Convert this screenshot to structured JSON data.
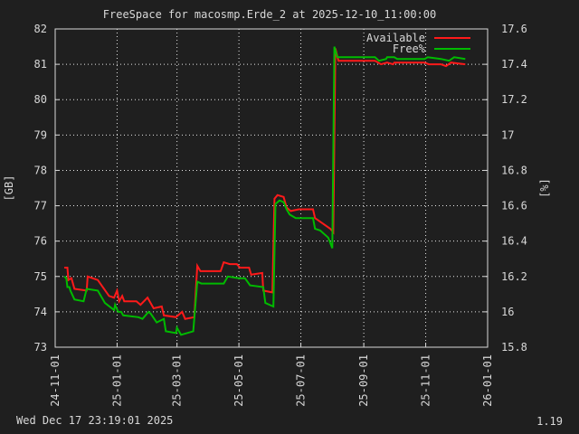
{
  "chart_data": {
    "type": "line",
    "title": "FreeSpace for macosmp.Erde_2  at 2025-12-10_11:00:00",
    "ylabel": "[GB]",
    "y2label": "[%]",
    "ylim": [
      73,
      82
    ],
    "y2lim": [
      15.8,
      17.6
    ],
    "yticks": [
      "73",
      "74",
      "75",
      "76",
      "77",
      "78",
      "79",
      "80",
      "81",
      "82"
    ],
    "y2ticks": [
      "15.8",
      "16",
      "16.2",
      "16.4",
      "16.6",
      "16.8",
      "17",
      "17.2",
      "17.4",
      "17.6"
    ],
    "xlim": [
      "2024-11-01",
      "2026-01-01"
    ],
    "xticks": [
      {
        "label": "24-11-01",
        "date": "2024-11-01"
      },
      {
        "label": "25-01-01",
        "date": "2025-01-01"
      },
      {
        "label": "25-03-01",
        "date": "2025-03-01"
      },
      {
        "label": "25-05-01",
        "date": "2025-05-01"
      },
      {
        "label": "25-07-01",
        "date": "2025-07-01"
      },
      {
        "label": "25-09-01",
        "date": "2025-09-01"
      },
      {
        "label": "25-11-01",
        "date": "2025-11-01"
      },
      {
        "label": "26-01-01",
        "date": "2026-01-01"
      }
    ],
    "grid": true,
    "legend": "top-right",
    "series": [
      {
        "name": "Available",
        "axis": "left",
        "color": "#ff1a1a",
        "points": [
          [
            "2024-11-10",
            75.25
          ],
          [
            "2024-11-13",
            75.25
          ],
          [
            "2024-11-14",
            74.9
          ],
          [
            "2024-11-17",
            74.95
          ],
          [
            "2024-11-20",
            74.65
          ],
          [
            "2024-12-02",
            74.6
          ],
          [
            "2024-12-03",
            75.0
          ],
          [
            "2024-12-13",
            74.9
          ],
          [
            "2024-12-24",
            74.45
          ],
          [
            "2024-12-29",
            74.4
          ],
          [
            "2025-01-01",
            74.6
          ],
          [
            "2025-01-03",
            74.3
          ],
          [
            "2025-01-06",
            74.45
          ],
          [
            "2025-01-08",
            74.3
          ],
          [
            "2025-01-20",
            74.3
          ],
          [
            "2025-01-24",
            74.2
          ],
          [
            "2025-01-31",
            74.4
          ],
          [
            "2025-02-06",
            74.1
          ],
          [
            "2025-02-14",
            74.15
          ],
          [
            "2025-02-16",
            73.9
          ],
          [
            "2025-02-28",
            73.85
          ],
          [
            "2025-03-06",
            74.0
          ],
          [
            "2025-03-09",
            73.8
          ],
          [
            "2025-03-18",
            73.85
          ],
          [
            "2025-03-21",
            75.3
          ],
          [
            "2025-03-24",
            75.15
          ],
          [
            "2025-04-13",
            75.15
          ],
          [
            "2025-04-16",
            75.4
          ],
          [
            "2025-04-22",
            75.35
          ],
          [
            "2025-04-29",
            75.35
          ],
          [
            "2025-05-02",
            75.25
          ],
          [
            "2025-05-11",
            75.25
          ],
          [
            "2025-05-13",
            75.05
          ],
          [
            "2025-05-24",
            75.1
          ],
          [
            "2025-05-25",
            74.6
          ],
          [
            "2025-06-03",
            74.55
          ],
          [
            "2025-06-05",
            77.2
          ],
          [
            "2025-06-08",
            77.3
          ],
          [
            "2025-06-14",
            77.25
          ],
          [
            "2025-06-17",
            76.95
          ],
          [
            "2025-06-21",
            76.85
          ],
          [
            "2025-06-29",
            76.9
          ],
          [
            "2025-07-13",
            76.9
          ],
          [
            "2025-07-15",
            76.65
          ],
          [
            "2025-07-20",
            76.55
          ],
          [
            "2025-07-30",
            76.35
          ],
          [
            "2025-08-02",
            76.25
          ],
          [
            "2025-08-04",
            81.45
          ],
          [
            "2025-08-07",
            81.1
          ],
          [
            "2025-09-12",
            81.1
          ],
          [
            "2025-09-18",
            81.0
          ],
          [
            "2025-09-24",
            81.05
          ],
          [
            "2025-09-30",
            81.0
          ],
          [
            "2025-10-01",
            81.05
          ],
          [
            "2025-10-31",
            81.05
          ],
          [
            "2025-11-04",
            81.0
          ],
          [
            "2025-11-16",
            81.0
          ],
          [
            "2025-11-21",
            80.95
          ],
          [
            "2025-11-26",
            81.05
          ],
          [
            "2025-12-10",
            81.0
          ]
        ]
      },
      {
        "name": "Free%",
        "axis": "right",
        "color": "#00bb00",
        "points": [
          [
            "2024-11-10",
            16.2
          ],
          [
            "2024-11-12",
            16.19
          ],
          [
            "2024-11-13",
            16.14
          ],
          [
            "2024-11-15",
            16.14
          ],
          [
            "2024-11-16",
            16.12
          ],
          [
            "2024-11-20",
            16.07
          ],
          [
            "2024-11-29",
            16.06
          ],
          [
            "2024-12-02",
            16.13
          ],
          [
            "2024-12-13",
            16.12
          ],
          [
            "2024-12-20",
            16.05
          ],
          [
            "2024-12-29",
            16.01
          ],
          [
            "2024-12-30",
            16.04
          ],
          [
            "2025-01-02",
            16.0
          ],
          [
            "2025-01-05",
            16.0
          ],
          [
            "2025-01-07",
            15.98
          ],
          [
            "2025-01-22",
            15.97
          ],
          [
            "2025-01-26",
            15.96
          ],
          [
            "2025-02-01",
            16.0
          ],
          [
            "2025-02-03",
            15.99
          ],
          [
            "2025-02-09",
            15.94
          ],
          [
            "2025-02-16",
            15.96
          ],
          [
            "2025-02-18",
            15.89
          ],
          [
            "2025-02-28",
            15.88
          ],
          [
            "2025-03-01",
            15.91
          ],
          [
            "2025-03-05",
            15.87
          ],
          [
            "2025-03-17",
            15.89
          ],
          [
            "2025-03-21",
            16.17
          ],
          [
            "2025-03-25",
            16.16
          ],
          [
            "2025-04-16",
            16.16
          ],
          [
            "2025-04-20",
            16.2
          ],
          [
            "2025-05-01",
            16.19
          ],
          [
            "2025-05-07",
            16.19
          ],
          [
            "2025-05-12",
            16.15
          ],
          [
            "2025-05-25",
            16.14
          ],
          [
            "2025-05-27",
            16.05
          ],
          [
            "2025-06-04",
            16.03
          ],
          [
            "2025-06-06",
            16.61
          ],
          [
            "2025-06-10",
            16.63
          ],
          [
            "2025-06-14",
            16.62
          ],
          [
            "2025-06-17",
            16.58
          ],
          [
            "2025-06-20",
            16.55
          ],
          [
            "2025-06-26",
            16.53
          ],
          [
            "2025-07-13",
            16.53
          ],
          [
            "2025-07-15",
            16.47
          ],
          [
            "2025-07-20",
            16.46
          ],
          [
            "2025-07-28",
            16.42
          ],
          [
            "2025-08-01",
            16.36
          ],
          [
            "2025-08-03",
            17.5
          ],
          [
            "2025-08-06",
            17.44
          ],
          [
            "2025-09-12",
            17.44
          ],
          [
            "2025-09-16",
            17.42
          ],
          [
            "2025-09-23",
            17.43
          ],
          [
            "2025-09-24",
            17.44
          ],
          [
            "2025-10-01",
            17.44
          ],
          [
            "2025-10-04",
            17.43
          ],
          [
            "2025-10-31",
            17.43
          ],
          [
            "2025-11-03",
            17.44
          ],
          [
            "2025-11-16",
            17.43
          ],
          [
            "2025-11-24",
            17.42
          ],
          [
            "2025-11-29",
            17.44
          ],
          [
            "2025-12-10",
            17.43
          ]
        ]
      }
    ]
  },
  "footer": {
    "timestamp": "Wed Dec 17 23:19:01 2025",
    "version": "1.19"
  }
}
